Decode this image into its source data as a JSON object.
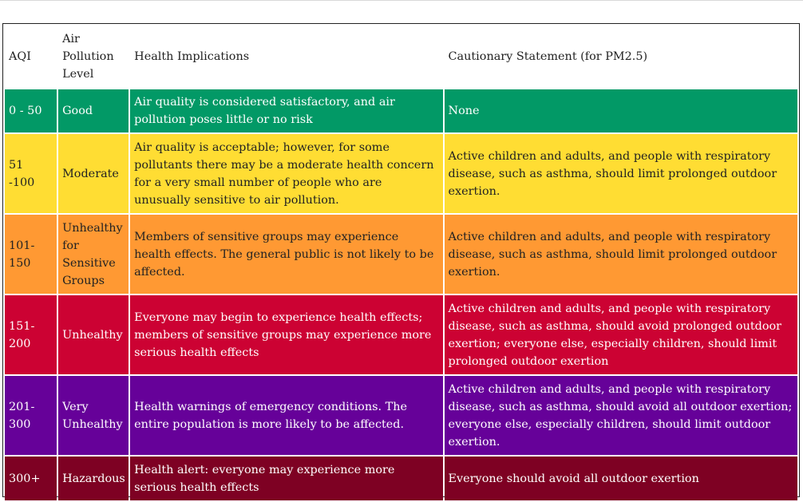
{
  "header": {
    "aqi": "AQI",
    "level": "Air Pollution Level",
    "health": "Health Implications",
    "caution": "Cautionary Statement (for PM2.5)"
  },
  "rows": [
    {
      "aqi": "0 - 50",
      "level": "Good",
      "health": "Air quality is considered satisfactory, and air pollution poses little or no risk",
      "caution": "None",
      "color": "#029966"
    },
    {
      "aqi": "51 -100",
      "level": "Moderate",
      "health": "Air quality is acceptable; however, for some pollutants there may be a moderate health concern for a very small number of people who are unusually sensitive to air pollution.",
      "caution": "Active children and adults, and people with respiratory disease, such as asthma, should limit prolonged outdoor exertion.",
      "color": "#ffdd33"
    },
    {
      "aqi": "101-150",
      "level": "Unhealthy for Sensitive Groups",
      "health": "Members of sensitive groups may experience health effects. The general public is not likely to be affected.",
      "caution": "Active children and adults, and people with respiratory disease, such as asthma, should limit prolonged outdoor exertion.",
      "color": "#ff9933"
    },
    {
      "aqi": "151-200",
      "level": "Unhealthy",
      "health": "Everyone may begin to experience health effects; members of sensitive groups may experience more serious health effects",
      "caution": "Active children and adults, and people with respiratory disease, such as asthma, should avoid prolonged outdoor exertion; everyone else, especially children, should limit prolonged outdoor exertion",
      "color": "#cc0233"
    },
    {
      "aqi": "201-300",
      "level": "Very Unhealthy",
      "health": "Health warnings of emergency conditions. The entire population is more likely to be affected.",
      "caution": "Active children and adults, and people with respiratory disease, such as asthma, should avoid all outdoor exertion; everyone else, especially children, should limit outdoor exertion.",
      "color": "#660199"
    },
    {
      "aqi": "300+",
      "level": "Hazardous",
      "health": "Health alert: everyone may experience more serious health effects",
      "caution": "Everyone should avoid all outdoor exertion",
      "color": "#7e0123"
    }
  ]
}
